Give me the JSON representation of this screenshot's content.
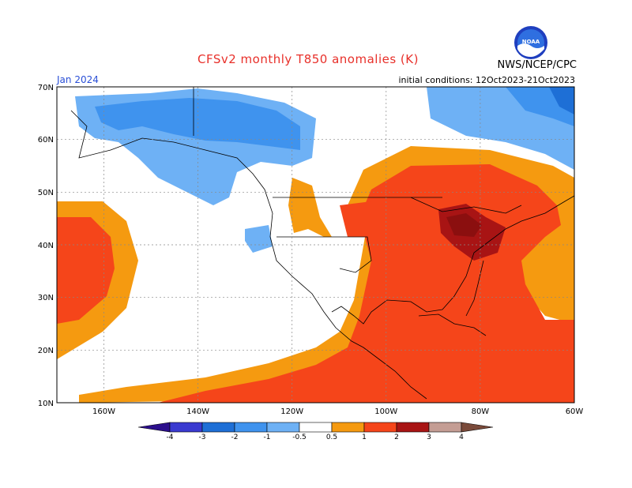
{
  "header": {
    "title": "CFSv2 monthly T850 anomalies (K)",
    "agency": "NWS/NCEP/CPC",
    "month": "Jan 2024",
    "init_conditions": "initial conditions: 12Oct2023-21Oct2023",
    "logo_text": "NOAA"
  },
  "axes": {
    "lat_labels": [
      "70N",
      "60N",
      "50N",
      "40N",
      "30N",
      "20N",
      "10N"
    ],
    "lon_labels": [
      "160W",
      "140W",
      "120W",
      "100W",
      "80W",
      "60W"
    ]
  },
  "legend": {
    "tick_labels": [
      "-4",
      "-3",
      "-2",
      "-1",
      "-0.5",
      "0.5",
      "1",
      "2",
      "3",
      "4"
    ],
    "colors": {
      "lt_m4": "#2c0f8c",
      "m4_m3": "#3a3ad0",
      "m3_m2": "#1e6fd6",
      "m2_m1": "#3f93ee",
      "m1_m05": "#6eb1f5",
      "neutral": "#ffffff",
      "p05_p1": "#f59a10",
      "p1_p2": "#f5451a",
      "p2_p3": "#a81414",
      "p3_p4": "#c49d94",
      "gt_p4": "#7a4a3a"
    }
  }
}
